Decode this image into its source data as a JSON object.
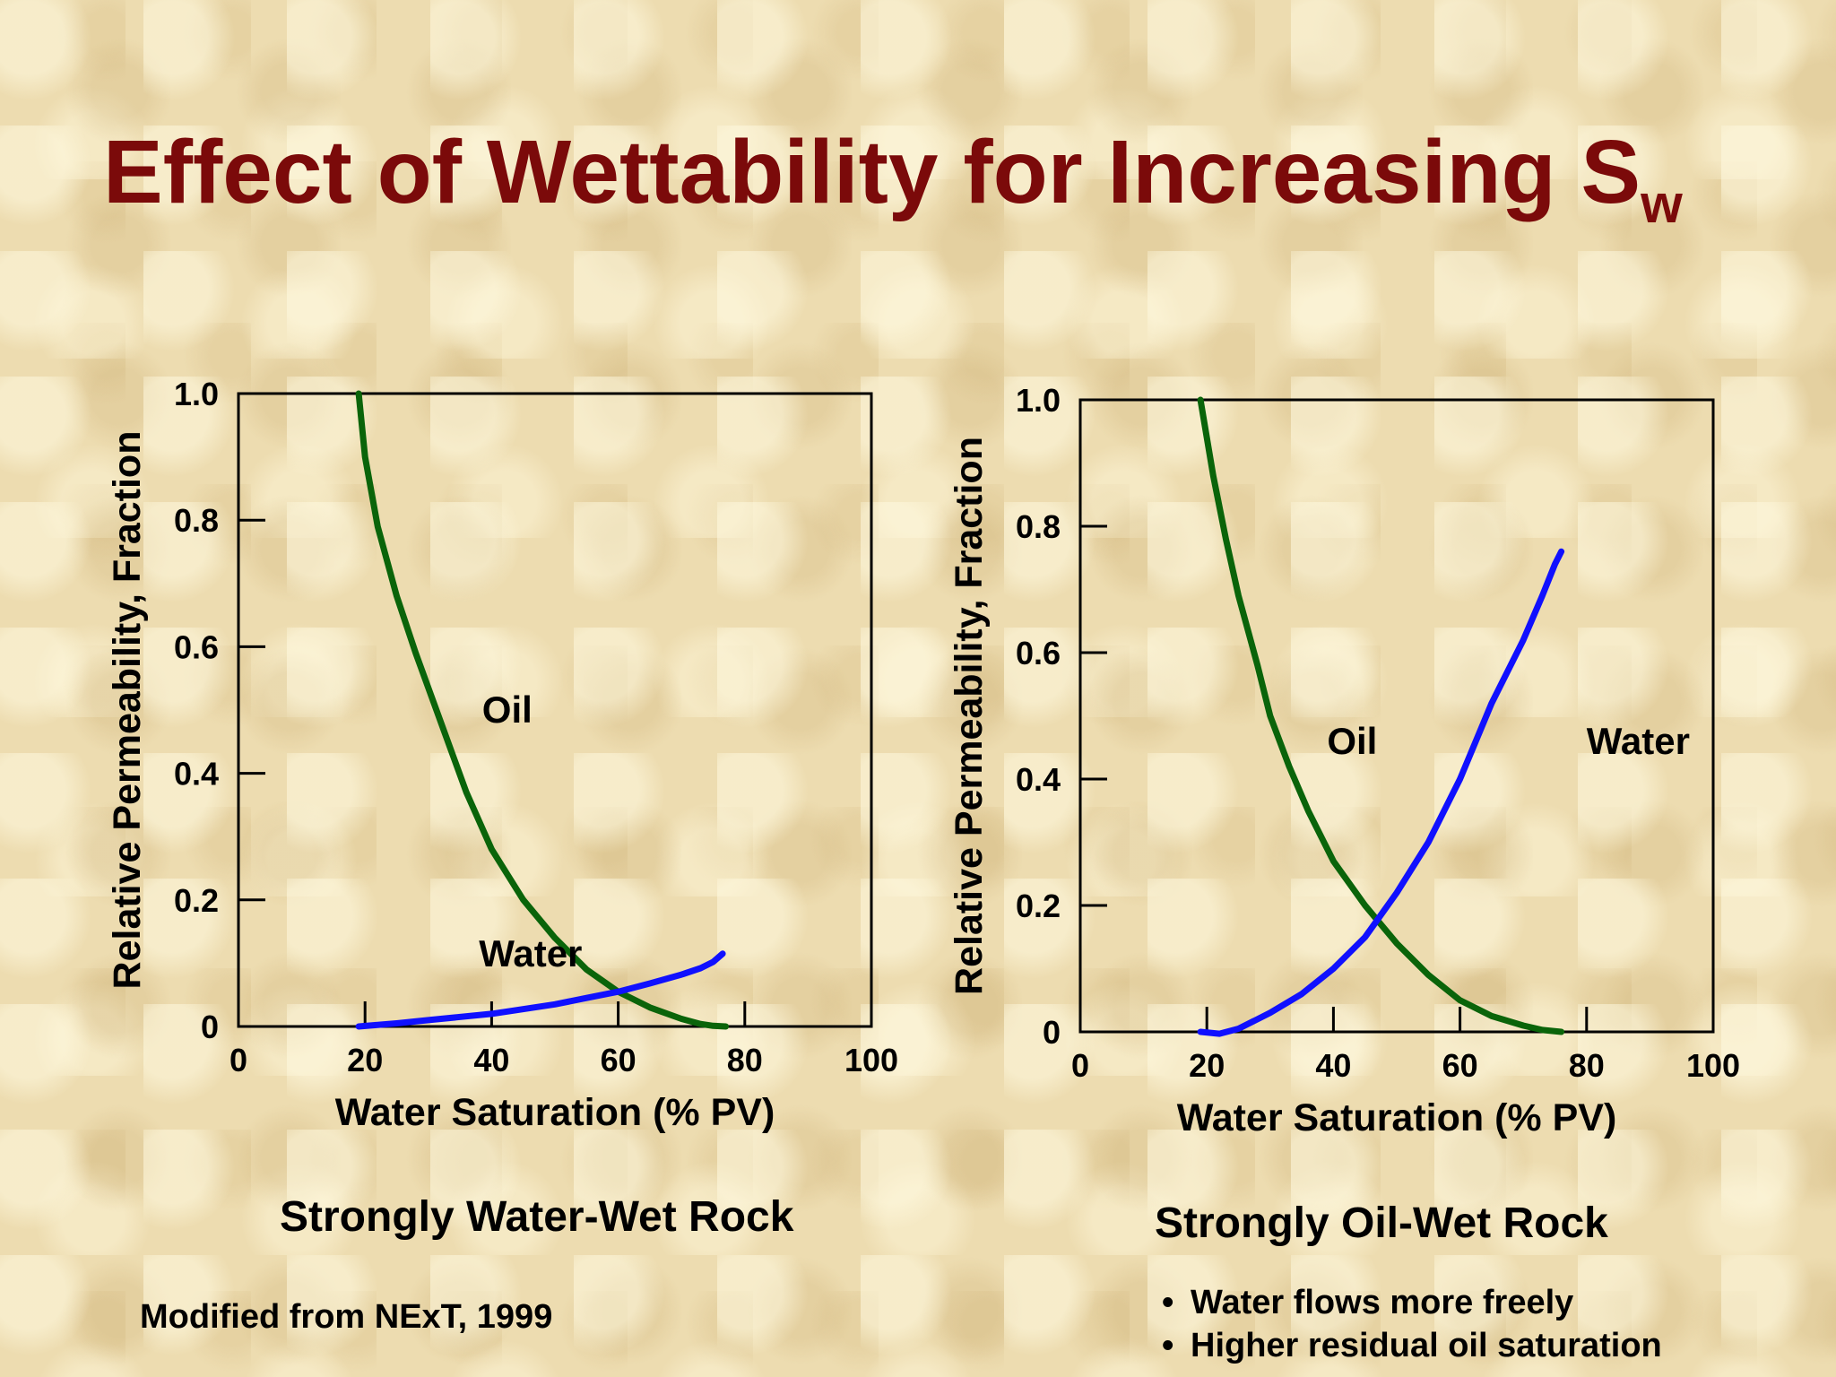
{
  "title": {
    "main": "Effect of Wettability for Increasing S",
    "subscript": "w"
  },
  "source_note": "Modified from NExT, 1999",
  "notes": [
    "Water flows more freely",
    "Higher residual oil saturation"
  ],
  "colors": {
    "title": "#7b0a0a",
    "oil_curve": "#0a640a",
    "water_curve": "#1010ff"
  },
  "chart_data": [
    {
      "type": "line",
      "caption": "Strongly Water-Wet Rock",
      "xlabel": "Water Saturation (% PV)",
      "ylabel": "Relative Permeability, Fraction",
      "xlim": [
        0,
        100
      ],
      "ylim": [
        0,
        1.0
      ],
      "xticks": [
        "0",
        "20",
        "40",
        "60",
        "80",
        "100"
      ],
      "yticks": [
        "0",
        "0.2",
        "0.4",
        "0.6",
        "0.8",
        "1.0"
      ],
      "grid": false,
      "series": [
        {
          "name": "Oil",
          "color": "#0a640a",
          "x": [
            19,
            20,
            22,
            25,
            28,
            32,
            36,
            40,
            45,
            50,
            55,
            60,
            65,
            70,
            73,
            75,
            77
          ],
          "y": [
            1.0,
            0.9,
            0.79,
            0.68,
            0.59,
            0.48,
            0.37,
            0.28,
            0.2,
            0.14,
            0.09,
            0.055,
            0.03,
            0.012,
            0.004,
            0.001,
            0.0
          ]
        },
        {
          "name": "Water",
          "color": "#1010ff",
          "x": [
            19,
            25,
            30,
            40,
            50,
            55,
            60,
            65,
            70,
            73,
            75,
            76.5
          ],
          "y": [
            0.0,
            0.005,
            0.01,
            0.02,
            0.035,
            0.045,
            0.055,
            0.068,
            0.082,
            0.092,
            0.102,
            0.115
          ]
        }
      ],
      "annotations": [
        {
          "text": "Oil",
          "x": 38.5,
          "y": 0.48
        },
        {
          "text": "Water",
          "x": 38,
          "y": 0.095
        }
      ]
    },
    {
      "type": "line",
      "caption": "Strongly Oil-Wet Rock",
      "xlabel": "Water Saturation (% PV)",
      "ylabel": "Relative Permeability, Fraction",
      "xlim": [
        0,
        100
      ],
      "ylim": [
        0,
        1.0
      ],
      "xticks": [
        "0",
        "20",
        "40",
        "60",
        "80",
        "100"
      ],
      "yticks": [
        "0",
        "0.2",
        "0.4",
        "0.6",
        "0.8",
        "1.0"
      ],
      "grid": false,
      "series": [
        {
          "name": "Oil",
          "color": "#0a640a",
          "x": [
            19,
            21,
            23,
            25,
            28,
            30,
            33,
            36,
            40,
            45,
            50,
            55,
            60,
            65,
            70,
            73,
            76
          ],
          "y": [
            1.0,
            0.88,
            0.78,
            0.69,
            0.58,
            0.5,
            0.42,
            0.35,
            0.27,
            0.2,
            0.14,
            0.09,
            0.05,
            0.025,
            0.01,
            0.003,
            0.0
          ]
        },
        {
          "name": "Water",
          "color": "#1010ff",
          "x": [
            19,
            22,
            25,
            30,
            35,
            40,
            45,
            50,
            55,
            60,
            65,
            70,
            73,
            75,
            76
          ],
          "y": [
            0.0,
            -0.003,
            0.005,
            0.03,
            0.06,
            0.1,
            0.15,
            0.22,
            0.3,
            0.4,
            0.52,
            0.62,
            0.69,
            0.74,
            0.76
          ]
        }
      ],
      "annotations": [
        {
          "text": "Oil",
          "x": 39,
          "y": 0.44
        },
        {
          "text": "Water",
          "x": 80,
          "y": 0.44
        }
      ]
    }
  ]
}
